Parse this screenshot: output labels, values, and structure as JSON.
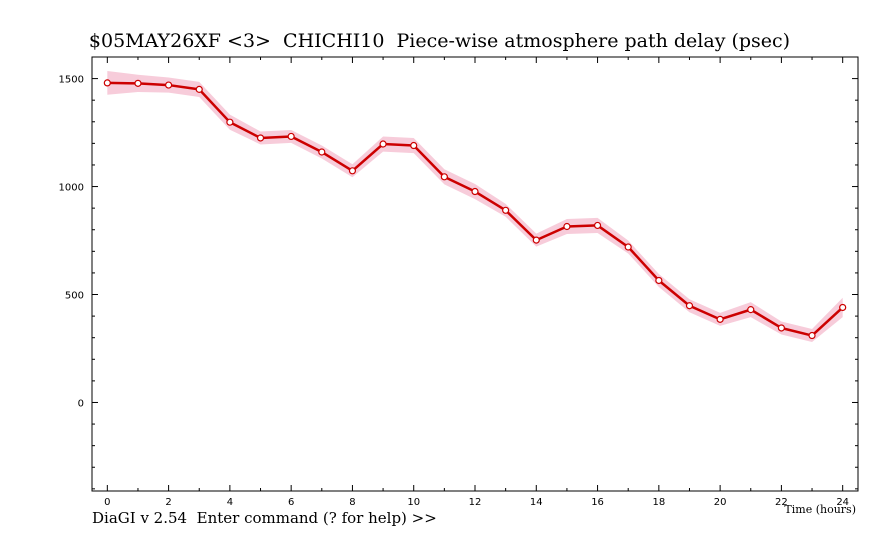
{
  "window": {
    "title": "$05MAY26XF <3>  CHICHI10  Piece-wise atmosphere path delay (psec)",
    "prompt": "DiaGI v 2.54  Enter command (? for help) >>"
  },
  "colors": {
    "line": "#cc0000",
    "band": "#f6c3d3",
    "marker_fill": "#ffffff",
    "axis": "#000000"
  },
  "chart_data": {
    "type": "line",
    "title": "$05MAY26XF <3>  CHICHI10  Piece-wise atmosphere path delay (psec)",
    "xlabel": "Time (hours)",
    "ylabel": "",
    "xlim": [
      -0.5,
      24.5
    ],
    "ylim": [
      -410,
      1600
    ],
    "x_ticks": [
      0,
      2,
      4,
      6,
      8,
      10,
      12,
      14,
      16,
      18,
      20,
      22,
      24
    ],
    "y_ticks": [
      0,
      500,
      1000,
      1500
    ],
    "grid": false,
    "series": [
      {
        "x": [
          0,
          1,
          2,
          3,
          4,
          5,
          6,
          7,
          8,
          9,
          10,
          11,
          12,
          13,
          14,
          15,
          16,
          17,
          18,
          19,
          20,
          21,
          22,
          23,
          24
        ],
        "values": [
          1480,
          1478,
          1470,
          1450,
          1298,
          1225,
          1232,
          1160,
          1073,
          1197,
          1190,
          1045,
          977,
          890,
          752,
          815,
          820,
          720,
          565,
          448,
          385,
          430,
          345,
          310,
          440
        ],
        "error": [
          55,
          40,
          35,
          35,
          35,
          30,
          30,
          30,
          30,
          35,
          35,
          35,
          35,
          30,
          30,
          35,
          35,
          30,
          30,
          30,
          30,
          35,
          30,
          30,
          45
        ]
      }
    ]
  }
}
